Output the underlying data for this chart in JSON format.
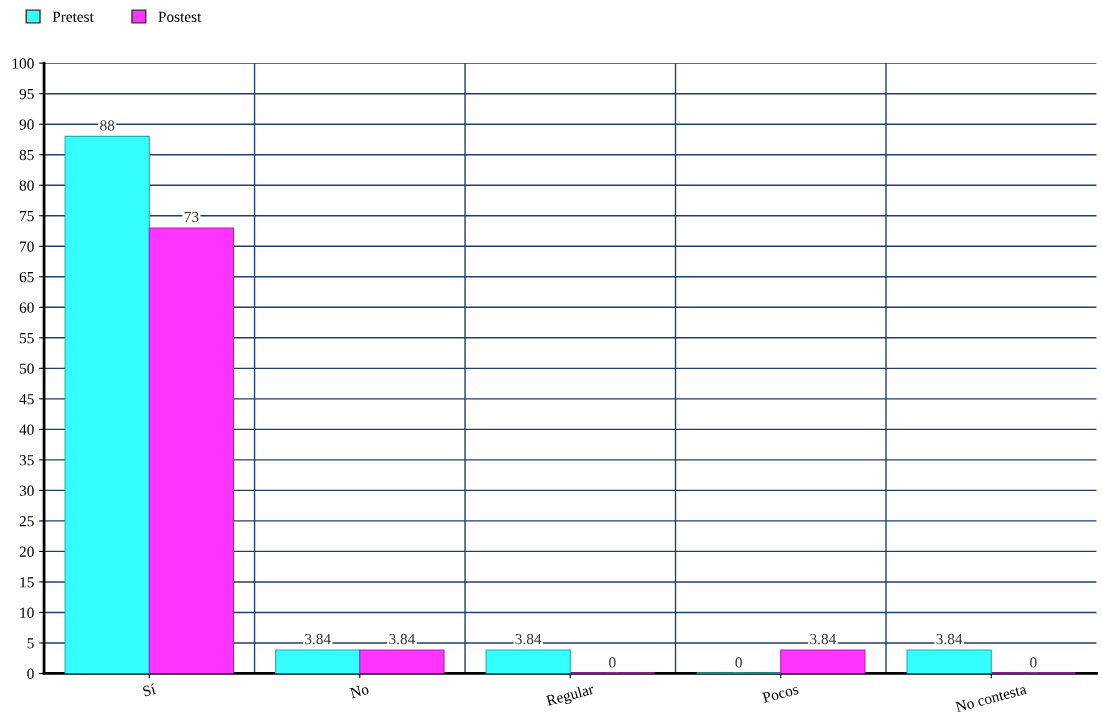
{
  "chart_data": {
    "type": "bar",
    "categories": [
      "Sí",
      "No",
      "Regular",
      "Pocos",
      "No contesta"
    ],
    "series": [
      {
        "name": "Pretest",
        "color": "#33ffff",
        "values": [
          88,
          3.84,
          3.84,
          0,
          3.84
        ]
      },
      {
        "name": "Postest",
        "color": "#ff33ff",
        "values": [
          73,
          3.84,
          0,
          3.84,
          0
        ]
      }
    ],
    "ylim": [
      0,
      100
    ],
    "yticks": [
      0,
      5,
      10,
      15,
      20,
      25,
      30,
      35,
      40,
      45,
      50,
      55,
      60,
      65,
      70,
      75,
      80,
      85,
      90,
      95,
      100
    ],
    "grid": true,
    "legend": "top left",
    "data_labels": true
  }
}
